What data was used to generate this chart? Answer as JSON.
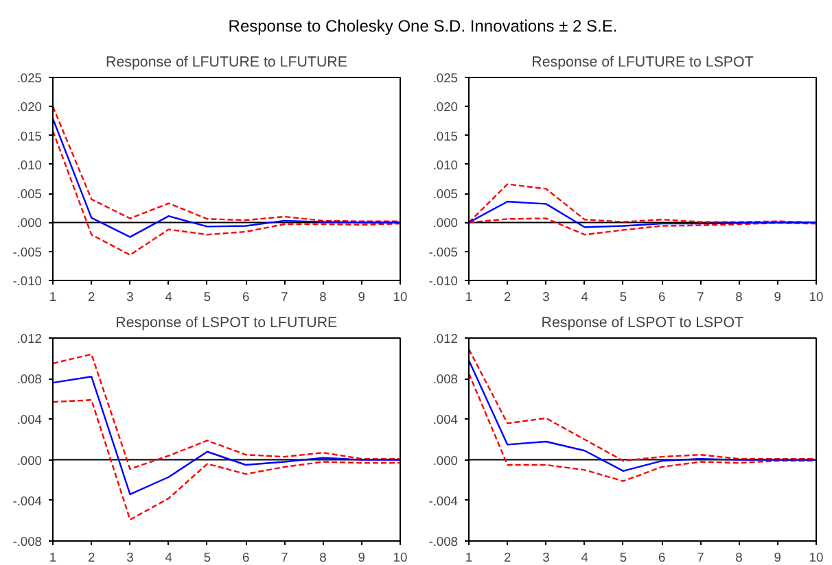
{
  "chart_data": [
    {
      "type": "line",
      "title": "Response of LFUTURE to LFUTURE",
      "annotations": [
        "Response to Cholesky One S.D. Innovations ± 2 S.E."
      ],
      "x": [
        1,
        2,
        3,
        4,
        5,
        6,
        7,
        8,
        9,
        10
      ],
      "xlim": [
        1,
        10
      ],
      "xticks": [
        1,
        2,
        3,
        4,
        5,
        6,
        7,
        8,
        9,
        10
      ],
      "ylim": [
        -0.01,
        0.025
      ],
      "yticks": [
        {
          "value": -0.01,
          "label": "-.010"
        },
        {
          "value": -0.005,
          "label": "-.005"
        },
        {
          "value": 0.0,
          "label": ".000"
        },
        {
          "value": 0.005,
          "label": ".005"
        },
        {
          "value": 0.01,
          "label": ".010"
        },
        {
          "value": 0.015,
          "label": ".015"
        },
        {
          "value": 0.02,
          "label": ".020"
        },
        {
          "value": 0.025,
          "label": ".025"
        }
      ],
      "grid": false,
      "ref_lines": [
        {
          "axis": "y",
          "value": 0,
          "color": "#000000"
        }
      ],
      "series": [
        {
          "color": "#0000ff",
          "line_style": "solid",
          "values": [
            0.0179,
            0.0008,
            -0.0025,
            0.0011,
            -0.0007,
            -0.0006,
            0.0003,
            0.0001,
            0.0,
            0.0
          ]
        },
        {
          "color": "#ff0000",
          "line_style": "dashed",
          "values": [
            0.02,
            0.004,
            0.0007,
            0.0033,
            0.0006,
            0.0004,
            0.001,
            0.0003,
            0.0002,
            0.0002
          ]
        },
        {
          "color": "#ff0000",
          "line_style": "dashed",
          "values": [
            0.0158,
            -0.0021,
            -0.0056,
            -0.0012,
            -0.0021,
            -0.0016,
            -0.0003,
            -0.0003,
            -0.0004,
            -0.0002
          ]
        }
      ]
    },
    {
      "type": "line",
      "title": "Response of LFUTURE to LSPOT",
      "x": [
        1,
        2,
        3,
        4,
        5,
        6,
        7,
        8,
        9,
        10
      ],
      "xlim": [
        1,
        10
      ],
      "xticks": [
        1,
        2,
        3,
        4,
        5,
        6,
        7,
        8,
        9,
        10
      ],
      "ylim": [
        -0.01,
        0.025
      ],
      "yticks": [
        {
          "value": -0.01,
          "label": "-.010"
        },
        {
          "value": -0.005,
          "label": "-.005"
        },
        {
          "value": 0.0,
          "label": ".000"
        },
        {
          "value": 0.005,
          "label": ".005"
        },
        {
          "value": 0.01,
          "label": ".010"
        },
        {
          "value": 0.015,
          "label": ".015"
        },
        {
          "value": 0.02,
          "label": ".020"
        },
        {
          "value": 0.025,
          "label": ".025"
        }
      ],
      "grid": false,
      "ref_lines": [
        {
          "axis": "y",
          "value": 0,
          "color": "#000000"
        }
      ],
      "series": [
        {
          "color": "#0000ff",
          "line_style": "solid",
          "values": [
            0.0,
            0.0036,
            0.0032,
            -0.0008,
            -0.0006,
            -0.0002,
            -0.0002,
            -0.0001,
            0.0,
            0.0
          ]
        },
        {
          "color": "#ff0000",
          "line_style": "dashed",
          "values": [
            0.0,
            0.0066,
            0.0058,
            0.0005,
            0.0001,
            0.0005,
            0.0001,
            0.0001,
            0.0002,
            0.0
          ]
        },
        {
          "color": "#ff0000",
          "line_style": "dashed",
          "values": [
            0.0,
            0.0006,
            0.0007,
            -0.0021,
            -0.0013,
            -0.0006,
            -0.0005,
            -0.0003,
            -0.0001,
            -0.0002
          ]
        }
      ]
    },
    {
      "type": "line",
      "title": "Response of LSPOT to LFUTURE",
      "x": [
        1,
        2,
        3,
        4,
        5,
        6,
        7,
        8,
        9,
        10
      ],
      "xlim": [
        1,
        10
      ],
      "xticks": [
        1,
        2,
        3,
        4,
        5,
        6,
        7,
        8,
        9,
        10
      ],
      "ylim": [
        -0.008,
        0.012
      ],
      "yticks": [
        {
          "value": -0.008,
          "label": "-.008"
        },
        {
          "value": -0.004,
          "label": "-.004"
        },
        {
          "value": 0.0,
          "label": ".000"
        },
        {
          "value": 0.004,
          "label": ".004"
        },
        {
          "value": 0.008,
          "label": ".008"
        },
        {
          "value": 0.012,
          "label": ".012"
        }
      ],
      "grid": false,
      "ref_lines": [
        {
          "axis": "y",
          "value": 0,
          "color": "#000000"
        }
      ],
      "series": [
        {
          "color": "#0000ff",
          "line_style": "solid",
          "values": [
            0.0076,
            0.0082,
            -0.0034,
            -0.0017,
            0.0008,
            -0.0005,
            -0.0002,
            0.0002,
            0.0,
            0.0
          ]
        },
        {
          "color": "#ff0000",
          "line_style": "dashed",
          "values": [
            0.0095,
            0.0104,
            -0.0009,
            0.0004,
            0.0019,
            0.0005,
            0.0003,
            0.0007,
            0.0001,
            0.0001
          ]
        },
        {
          "color": "#ff0000",
          "line_style": "dashed",
          "values": [
            0.0057,
            0.0059,
            -0.0059,
            -0.0038,
            -0.0004,
            -0.0014,
            -0.0007,
            -0.0002,
            -0.0003,
            -0.0003
          ]
        }
      ]
    },
    {
      "type": "line",
      "title": "Response of LSPOT to LSPOT",
      "x": [
        1,
        2,
        3,
        4,
        5,
        6,
        7,
        8,
        9,
        10
      ],
      "xlim": [
        1,
        10
      ],
      "xticks": [
        1,
        2,
        3,
        4,
        5,
        6,
        7,
        8,
        9,
        10
      ],
      "ylim": [
        -0.008,
        0.012
      ],
      "yticks": [
        {
          "value": -0.008,
          "label": "-.008"
        },
        {
          "value": -0.004,
          "label": "-.004"
        },
        {
          "value": 0.0,
          "label": ".000"
        },
        {
          "value": 0.004,
          "label": ".004"
        },
        {
          "value": 0.008,
          "label": ".008"
        },
        {
          "value": 0.012,
          "label": ".012"
        }
      ],
      "grid": false,
      "ref_lines": [
        {
          "axis": "y",
          "value": 0,
          "color": "#000000"
        }
      ],
      "series": [
        {
          "color": "#0000ff",
          "line_style": "solid",
          "values": [
            0.0098,
            0.0015,
            0.0018,
            0.0009,
            -0.0011,
            -0.0001,
            0.0001,
            0.0,
            0.0,
            0.0
          ]
        },
        {
          "color": "#ff0000",
          "line_style": "dashed",
          "values": [
            0.0109,
            0.0036,
            0.0041,
            0.002,
            -0.0001,
            0.0003,
            0.0005,
            0.0001,
            0.0001,
            0.0001
          ]
        },
        {
          "color": "#ff0000",
          "line_style": "dashed",
          "values": [
            0.0085,
            -0.0005,
            -0.0005,
            -0.001,
            -0.0021,
            -0.0007,
            -0.0002,
            -0.0003,
            -0.0001,
            -0.0001
          ]
        }
      ]
    }
  ]
}
